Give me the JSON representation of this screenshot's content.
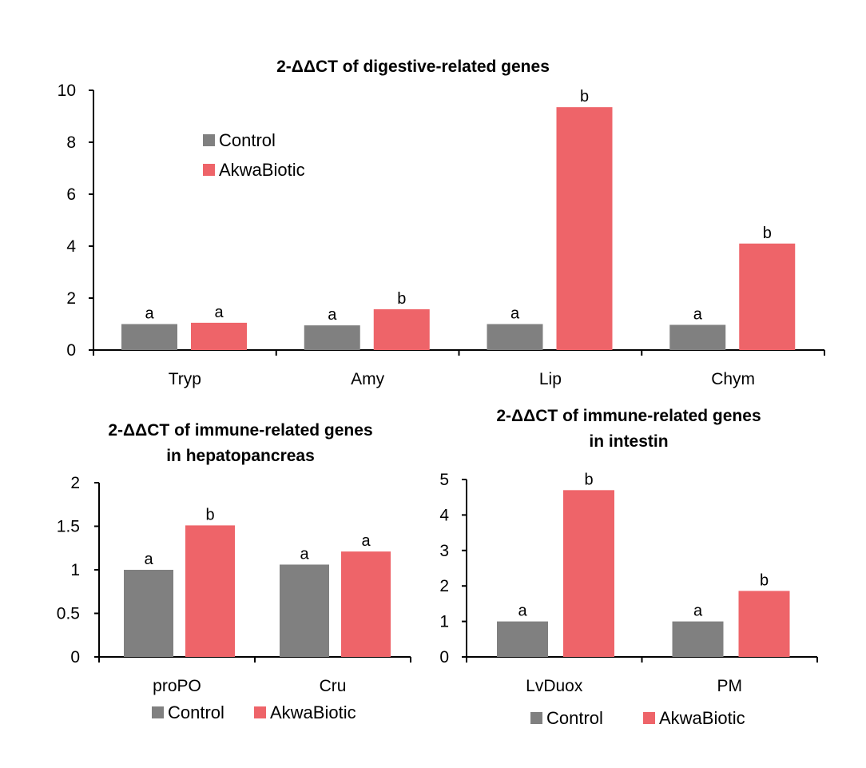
{
  "colors": {
    "control": "#808080",
    "akwabiotic": "#ee6469",
    "axis": "#000000"
  },
  "chart_data": [
    {
      "type": "bar",
      "title": "2-ΔΔCT of digestive-related genes",
      "title_lines": [
        "2-ΔΔCT of digestive-related genes"
      ],
      "categories": [
        "Tryp",
        "Amy",
        "Lip",
        "Chym"
      ],
      "ylim": [
        0,
        10
      ],
      "yticks": [
        "0",
        "2",
        "4",
        "6",
        "8",
        "10"
      ],
      "legend": [
        "Control",
        "AkwaBiotic"
      ],
      "legend_position": "top-left",
      "series": [
        {
          "name": "Control",
          "values": [
            1.0,
            0.95,
            1.0,
            0.97
          ],
          "labels": [
            "a",
            "a",
            "a",
            "a"
          ]
        },
        {
          "name": "AkwaBiotic",
          "values": [
            1.05,
            1.57,
            9.35,
            4.1
          ],
          "labels": [
            "a",
            "b",
            "b",
            "b"
          ]
        }
      ]
    },
    {
      "type": "bar",
      "title": "2-ΔΔCT of immune-related genes in hepatopancreas",
      "title_lines": [
        "2-ΔΔCT of immune-related genes",
        "in hepatopancreas"
      ],
      "categories": [
        "proPO",
        "Cru"
      ],
      "ylim": [
        0,
        2
      ],
      "yticks": [
        "0",
        "0.5",
        "1",
        "1.5",
        "2"
      ],
      "legend": [
        "Control",
        "AkwaBiotic"
      ],
      "legend_position": "bottom",
      "series": [
        {
          "name": "Control",
          "values": [
            1.0,
            1.06
          ],
          "labels": [
            "a",
            "a"
          ]
        },
        {
          "name": "AkwaBiotic",
          "values": [
            1.51,
            1.21
          ],
          "labels": [
            "b",
            "a"
          ]
        }
      ]
    },
    {
      "type": "bar",
      "title": "2-ΔΔCT of immune-related genes in intestin",
      "title_lines": [
        "2-ΔΔCT of immune-related genes",
        "in intestin"
      ],
      "categories": [
        "LvDuox",
        "PM"
      ],
      "ylim": [
        0,
        5
      ],
      "yticks": [
        "0",
        "1",
        "2",
        "3",
        "4",
        "5"
      ],
      "legend": [
        "Control",
        "AkwaBiotic"
      ],
      "legend_position": "bottom",
      "series": [
        {
          "name": "Control",
          "values": [
            1.0,
            1.0
          ],
          "labels": [
            "a",
            "a"
          ]
        },
        {
          "name": "AkwaBiotic",
          "values": [
            4.7,
            1.86
          ],
          "labels": [
            "b",
            "b"
          ]
        }
      ]
    }
  ]
}
